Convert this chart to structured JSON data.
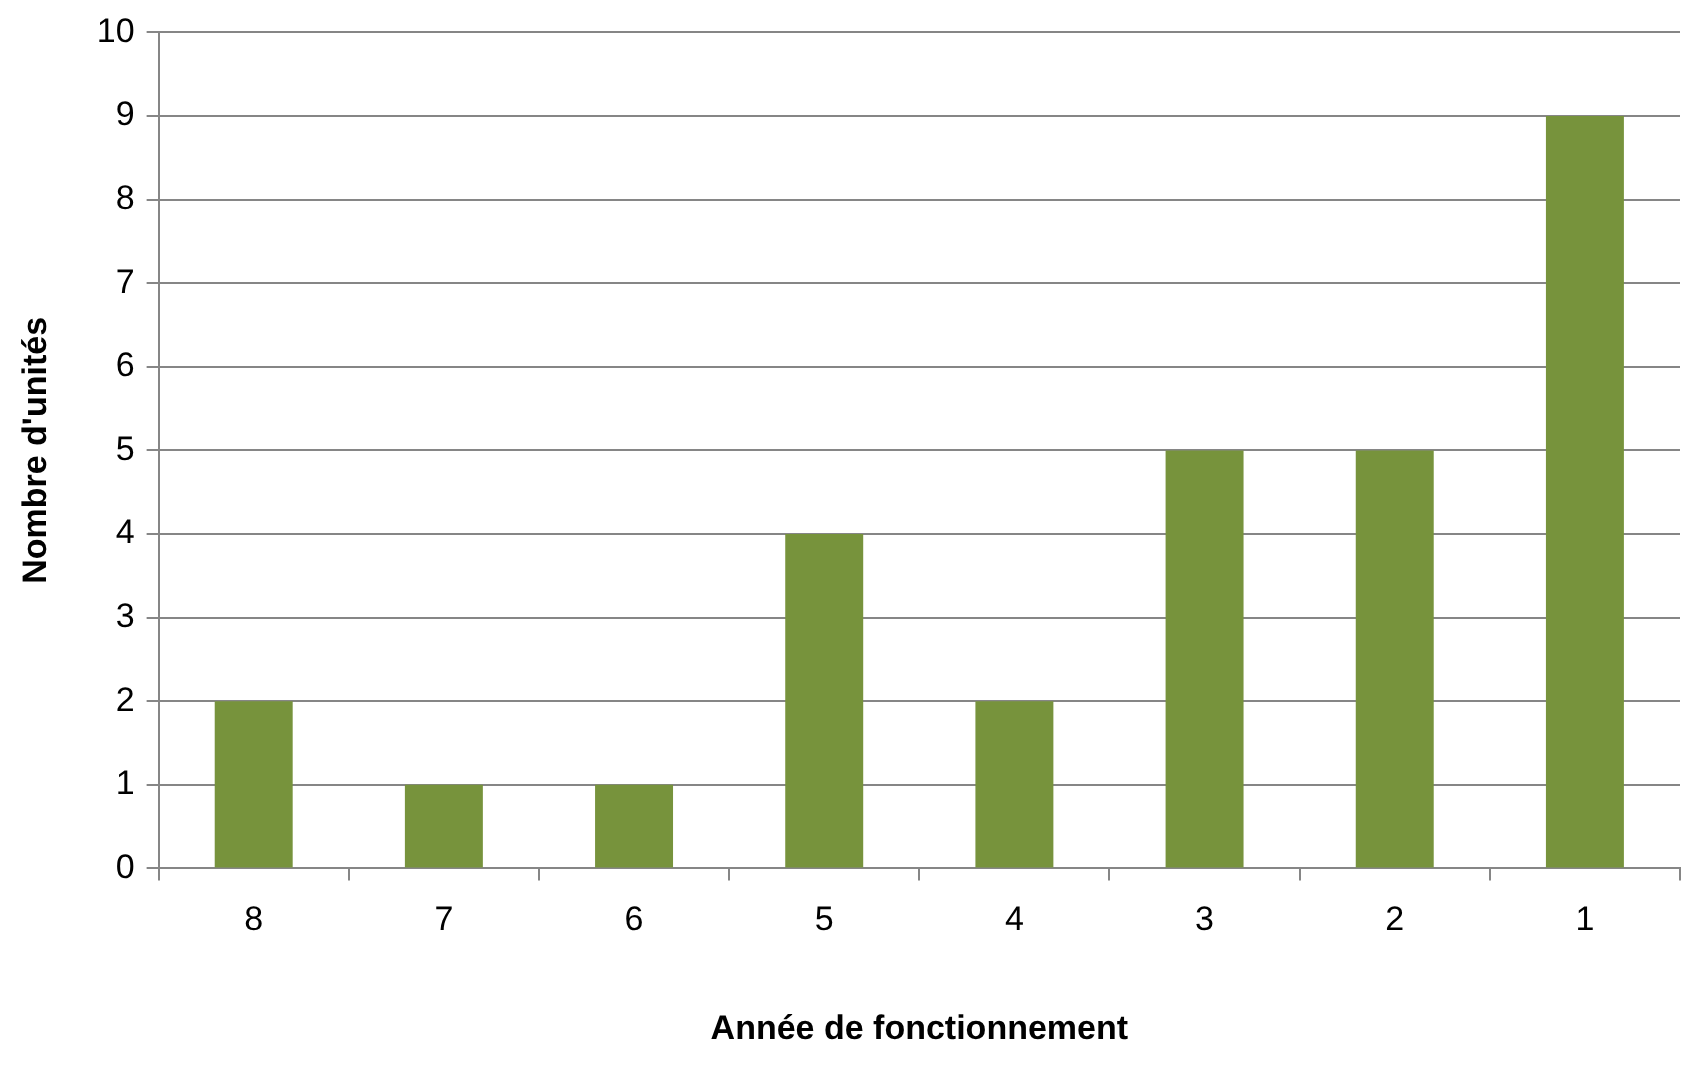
{
  "chart_data": {
    "type": "bar",
    "xlabel": "Année de fonctionnement",
    "ylabel": "Nombre d'unités",
    "categories": [
      "8",
      "7",
      "6",
      "5",
      "4",
      "3",
      "2",
      "1"
    ],
    "values": [
      2,
      1,
      1,
      4,
      2,
      5,
      5,
      9
    ],
    "color": "#77933c",
    "ylim": [
      0,
      10
    ],
    "yticks": [
      0,
      1,
      2,
      3,
      4,
      5,
      6,
      7,
      8,
      9,
      10
    ],
    "grid": "y"
  }
}
